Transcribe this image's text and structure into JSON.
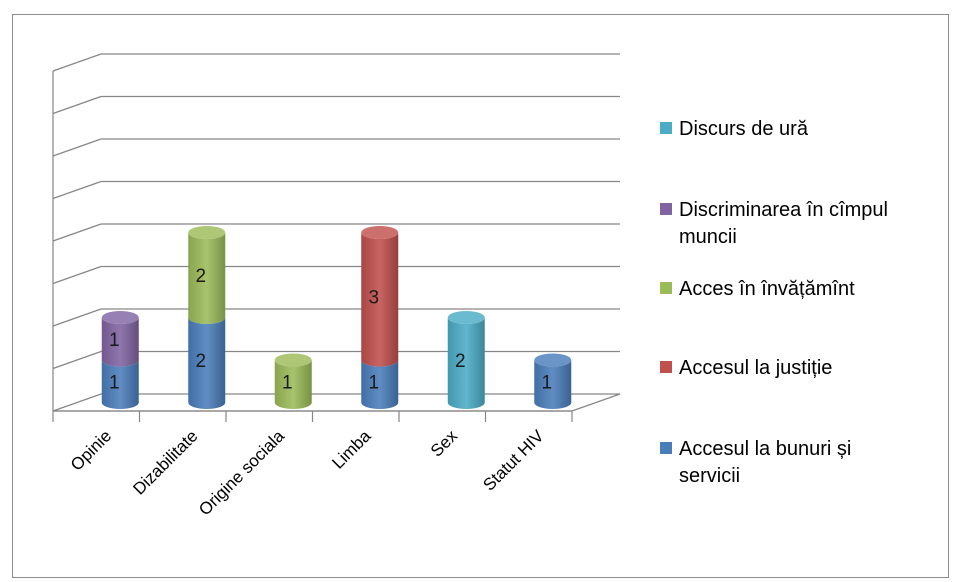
{
  "chart_data": {
    "type": "bar",
    "stacked": true,
    "three_d": true,
    "categories": [
      "Opinie",
      "Dizabilitate",
      "Origine sociala",
      "Limba",
      "Sex",
      "Statut HIV"
    ],
    "series": [
      {
        "name": "Accesul la bunuri și servicii",
        "color": "#4a7ebb",
        "values": [
          1,
          2,
          0,
          1,
          0,
          1
        ]
      },
      {
        "name": "Accesul la justiție",
        "color": "#c0504d",
        "values": [
          0,
          0,
          0,
          3,
          0,
          0
        ]
      },
      {
        "name": "Acces în învățămînt",
        "color": "#9bbb59",
        "values": [
          0,
          2,
          1,
          0,
          0,
          0
        ]
      },
      {
        "name": "Discriminarea în cîmpul muncii",
        "color": "#8064a2",
        "values": [
          1,
          0,
          0,
          0,
          0,
          0
        ]
      },
      {
        "name": "Discurs de ură",
        "color": "#4bacc6",
        "values": [
          0,
          0,
          0,
          0,
          2,
          0
        ]
      }
    ],
    "legend_order": [
      "Discurs de ură",
      "Discriminarea în cîmpul muncii",
      "Acces în învățămînt",
      "Accesul la justiție",
      "Accesul la bunuri și servicii"
    ],
    "legend_lines": [
      [
        "Discurs de ură"
      ],
      [
        "Discriminarea în cîmpul",
        "muncii"
      ],
      [
        "Acces în învățămînt"
      ],
      [
        "Accesul la justiție"
      ],
      [
        "Accesul la bunuri și",
        "servicii"
      ]
    ],
    "ylim": [
      0,
      8
    ],
    "gridlines": true,
    "data_labels": true,
    "legend_position": "right"
  }
}
